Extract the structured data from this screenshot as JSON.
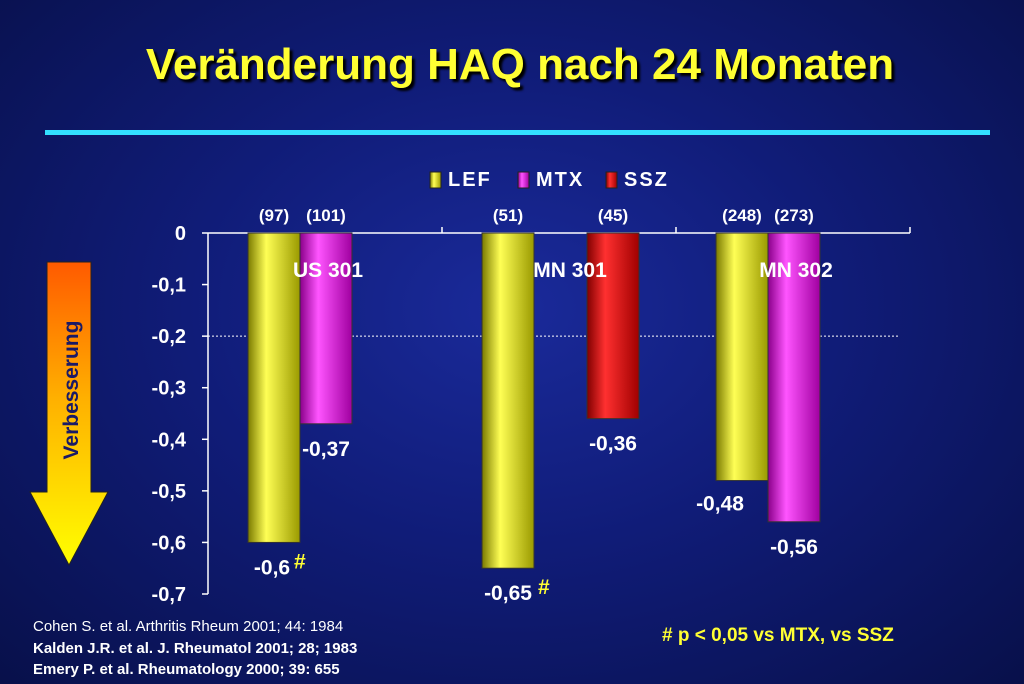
{
  "title": "Veränderung HAQ nach 24 Monaten",
  "arrow_label": "Verbesserung",
  "footnote": "# p < 0,05 vs MTX, vs SSZ",
  "references": [
    "Cohen S. et al. Arthritis Rheum 2001; 44: 1984",
    "Kalden J.R. et al. J. Rheumatol 2001; 28; 1983",
    "Emery P. et al. Rheumatology 2000; 39: 655"
  ],
  "colors": {
    "LEF": "#e8e800",
    "MTX": "#e000e0",
    "SSZ": "#e00000",
    "title": "#ffff33",
    "rule": "#33e0ff"
  },
  "chart_data": {
    "type": "bar",
    "ylim": [
      -0.7,
      0
    ],
    "yticks": [
      "0",
      "-0,1",
      "-0,2",
      "-0,3",
      "-0,4",
      "-0,5",
      "-0,6",
      "-0,7"
    ],
    "reference_line": -0.2,
    "legend": [
      "LEF",
      "MTX",
      "SSZ"
    ],
    "legend_position": "top",
    "groups": [
      {
        "name": "US 301",
        "bars": [
          {
            "series": "LEF",
            "value": -0.6,
            "label": "-0,6",
            "n": "(97)",
            "mark": "#"
          },
          {
            "series": "MTX",
            "value": -0.37,
            "label": "-0,37",
            "n": "(101)",
            "mark": ""
          }
        ]
      },
      {
        "name": "MN 301",
        "bars": [
          {
            "series": "LEF",
            "value": -0.65,
            "label": "-0,65",
            "n": "(51)",
            "mark": "#"
          },
          {
            "series": "SSZ",
            "value": -0.36,
            "label": "-0,36",
            "n": "(45)",
            "mark": ""
          }
        ]
      },
      {
        "name": "MN 302",
        "bars": [
          {
            "series": "LEF",
            "value": -0.48,
            "label": "-0,48",
            "n": "(248)",
            "mark": ""
          },
          {
            "series": "MTX",
            "value": -0.56,
            "label": "-0,56",
            "n": "(273)",
            "mark": ""
          }
        ]
      }
    ]
  }
}
